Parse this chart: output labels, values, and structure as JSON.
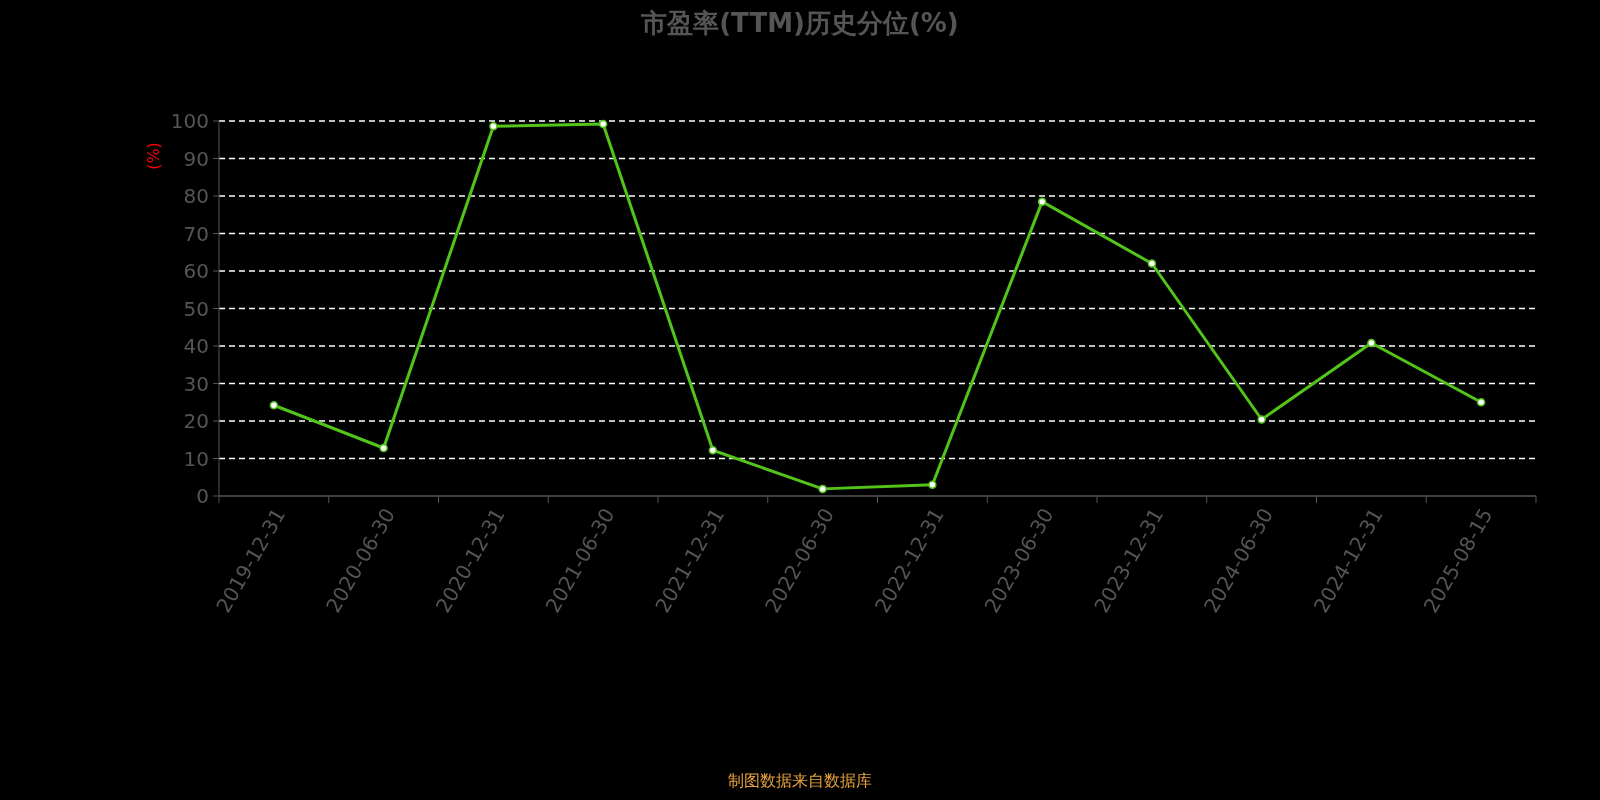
{
  "chart_data": {
    "type": "line",
    "title": "市盈率(TTM)历史分位(%)",
    "ylabel": "(%)",
    "annotations": [
      "制图数据来自数据库"
    ],
    "categories": [
      "2019-12-31",
      "2020-06-30",
      "2020-12-31",
      "2021-06-30",
      "2021-12-31",
      "2022-06-30",
      "2022-12-31",
      "2023-06-30",
      "2023-12-31",
      "2024-06-30",
      "2024-12-31",
      "2025-08-15"
    ],
    "series": [
      {
        "color": "#52c41a",
        "values": [
          24.2,
          12.8,
          98.6,
          99.2,
          12.2,
          1.9,
          3.0,
          78.5,
          62.0,
          20.4,
          40.8,
          25.0
        ]
      }
    ],
    "ylim": [
      0,
      100
    ],
    "yticks": [
      0,
      10,
      20,
      30,
      40,
      50,
      60,
      70,
      80,
      90,
      100
    ],
    "grid": "y",
    "marker": "circle",
    "line_style": "solid"
  }
}
